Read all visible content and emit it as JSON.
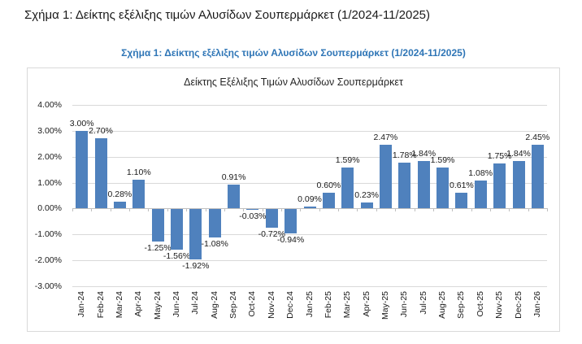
{
  "page": {
    "heading": "Σχήμα 1: Δείκτης εξέλιξης τιμών Αλυσίδων Σουπερμάρκετ (1/2024-11/2025)",
    "figure_caption": "Σχήμα 1: Δείκτης εξέλιξης τιμών Αλυσίδων Σουπερμάρκετ (1/2024-11/2025)"
  },
  "chart_data": {
    "type": "bar",
    "title": "Δείκτης Εξέλιξης Τιμών Αλυσίδων Σουπερμάρκετ",
    "xlabel": "",
    "ylabel": "",
    "categories": [
      "Jan-24",
      "Feb-24",
      "Mar-24",
      "Apr-24",
      "May-24",
      "Jun-24",
      "Jul-24",
      "Aug-24",
      "Sep-24",
      "Oct-24",
      "Nov-24",
      "Dec-24",
      "Jan-25",
      "Feb-25",
      "Mar-25",
      "Apr-25",
      "May-25",
      "Jun-25",
      "Jul-25",
      "Aug-25",
      "Sep-25",
      "Oct-25",
      "Nov-25",
      "Dec-25",
      "Jan-26"
    ],
    "values": [
      3.0,
      2.7,
      0.28,
      1.1,
      -1.25,
      -1.56,
      -1.92,
      -1.08,
      0.91,
      -0.03,
      -0.72,
      -0.94,
      0.09,
      0.6,
      1.59,
      0.23,
      2.47,
      1.78,
      1.84,
      1.59,
      0.61,
      1.08,
      1.75,
      1.84,
      2.45
    ],
    "data_labels": [
      "3.00%",
      "2.70%",
      "0.28%",
      "1.10%",
      "-1.25%",
      "-1.56%",
      "-1.92%",
      "-1.08%",
      "0.91%",
      "-0.03%",
      "-0.72%",
      "-0.94%",
      "0.09%",
      "0.60%",
      "1.59%",
      "0.23%",
      "2.47%",
      "1.78%",
      "1.84%",
      "1.59%",
      "0.61%",
      "1.08%",
      "1.75%",
      "1.84%",
      "2.45%"
    ],
    "y_ticks": [
      "4.00%",
      "3.00%",
      "2.00%",
      "1.00%",
      "0.00%",
      "-1.00%",
      "-2.00%",
      "-3.00%"
    ],
    "ylim": [
      -3,
      4
    ],
    "y_step": 1,
    "grid": "horizontal",
    "legend": "none",
    "bar_color": "#4F81BD",
    "gridline_color": "#D9D9D9",
    "axis_color": "#BFBFBF",
    "caption_color": "#2E75B6"
  }
}
